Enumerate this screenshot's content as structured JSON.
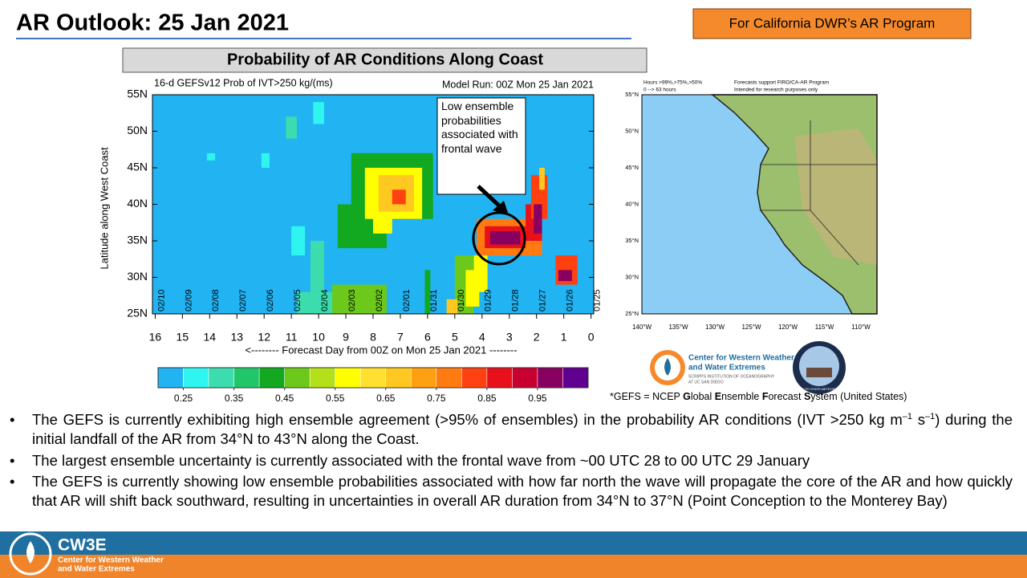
{
  "header": {
    "title": "AR Outlook: 25 Jan 2021",
    "tag": "For California DWR’s AR Program"
  },
  "panel_title": "Probability of AR Conditions Along Coast",
  "chart_data": {
    "type": "heatmap",
    "title": "16-d GEFSv12 Prob of IVT>250 kg/(ms)",
    "subtitle": "Model Run: 00Z Mon 25 Jan 2021",
    "x_label": "<-------- Forecast Day from 00Z on Mon 25 Jan 2021 --------",
    "y_label": "Latitude along West Coast",
    "annotation": "Low ensemble probabilities associated with frontal wave",
    "xlim": [
      16.1,
      -0.1
    ],
    "xticks": [
      16,
      15,
      14,
      13,
      12,
      11,
      10,
      9,
      8,
      7,
      6,
      5,
      4,
      3,
      2,
      1,
      0
    ],
    "x_dates": [
      "02/10",
      "02/09",
      "02/08",
      "02/07",
      "02/06",
      "02/05",
      "02/04",
      "02/03",
      "02/02",
      "02/01",
      "01/31",
      "01/30",
      "01/29",
      "01/28",
      "01/27",
      "01/26",
      "01/25"
    ],
    "ylim": [
      25,
      55
    ],
    "yticks": [
      {
        "value": 25,
        "label": "25N"
      },
      {
        "value": 30,
        "label": "30N"
      },
      {
        "value": 35,
        "label": "35N"
      },
      {
        "value": 40,
        "label": "40N"
      },
      {
        "value": 45,
        "label": "45N"
      },
      {
        "value": 50,
        "label": "50N"
      },
      {
        "value": 55,
        "label": "55N"
      }
    ],
    "patches": [
      {
        "days": [
          8.8,
          5.8
        ],
        "lats": [
          38,
          47
        ],
        "value": 0.4
      },
      {
        "days": [
          9.3,
          7.5
        ],
        "lats": [
          34,
          40
        ],
        "value": 0.4
      },
      {
        "days": [
          8.3,
          6.2
        ],
        "lats": [
          38,
          45
        ],
        "value": 0.55
      },
      {
        "days": [
          8.0,
          7.3
        ],
        "lats": [
          36,
          39
        ],
        "value": 0.6
      },
      {
        "days": [
          7.8,
          6.5
        ],
        "lats": [
          39,
          44
        ],
        "value": 0.7
      },
      {
        "days": [
          7.3,
          6.8
        ],
        "lats": [
          40,
          42
        ],
        "value": 0.8
      },
      {
        "days": [
          10.8,
          9.5
        ],
        "lats": [
          25,
          28
        ],
        "value": 0.35
      },
      {
        "days": [
          9.5,
          7.5
        ],
        "lats": [
          25,
          29
        ],
        "value": 0.45
      },
      {
        "days": [
          8.5,
          7.5
        ],
        "lats": [
          25,
          27
        ],
        "value": 0.5
      },
      {
        "days": [
          10.3,
          9.8
        ],
        "lats": [
          28,
          35
        ],
        "value": 0.35
      },
      {
        "days": [
          11.0,
          10.5
        ],
        "lats": [
          33,
          37
        ],
        "value": 0.3
      },
      {
        "days": [
          11.2,
          10.8
        ],
        "lats": [
          49,
          52
        ],
        "value": 0.35
      },
      {
        "days": [
          10.2,
          9.8
        ],
        "lats": [
          51,
          54
        ],
        "value": 0.3
      },
      {
        "days": [
          14.1,
          13.8
        ],
        "lats": [
          46,
          47
        ],
        "value": 0.3
      },
      {
        "days": [
          12.1,
          11.8
        ],
        "lats": [
          45,
          47
        ],
        "value": 0.3
      },
      {
        "days": [
          6.1,
          5.9
        ],
        "lats": [
          25,
          31
        ],
        "value": 0.4
      },
      {
        "days": [
          5.0,
          4.3
        ],
        "lats": [
          25,
          33
        ],
        "value": 0.45
      },
      {
        "days": [
          4.6,
          4.1
        ],
        "lats": [
          26,
          31
        ],
        "value": 0.6
      },
      {
        "days": [
          5.3,
          4.9
        ],
        "lats": [
          25,
          27
        ],
        "value": 0.7
      },
      {
        "days": [
          4.3,
          3.8
        ],
        "lats": [
          28,
          33
        ],
        "value": 0.55
      },
      {
        "days": [
          4.2,
          1.8
        ],
        "lats": [
          33,
          38
        ],
        "value": 0.75
      },
      {
        "days": [
          3.9,
          2.4
        ],
        "lats": [
          34,
          37
        ],
        "value": 0.9
      },
      {
        "days": [
          3.7,
          2.6
        ],
        "lats": [
          34.5,
          36.3
        ],
        "value": 0.98
      },
      {
        "days": [
          2.4,
          1.8
        ],
        "lats": [
          35,
          40
        ],
        "value": 0.9
      },
      {
        "days": [
          2.2,
          1.6
        ],
        "lats": [
          38,
          44
        ],
        "value": 0.8
      },
      {
        "days": [
          2.1,
          1.8
        ],
        "lats": [
          36,
          40
        ],
        "value": 0.98
      },
      {
        "days": [
          1.9,
          1.7
        ],
        "lats": [
          42,
          45
        ],
        "value": 0.7
      },
      {
        "days": [
          1.3,
          0.5
        ],
        "lats": [
          29,
          33
        ],
        "value": 0.8
      },
      {
        "days": [
          1.2,
          0.7
        ],
        "lats": [
          29.5,
          31
        ],
        "value": 0.95
      }
    ],
    "colorbar": {
      "lim": [
        0.2,
        1.05
      ],
      "colors": [
        "#21b3f2",
        "#2ef5f0",
        "#3cdcae",
        "#22c66a",
        "#12a820",
        "#6cc81a",
        "#b4e01a",
        "#ffff00",
        "#ffe030",
        "#ffc820",
        "#ffa010",
        "#ff7a10",
        "#ff4010",
        "#e8101a",
        "#c80030",
        "#880060",
        "#600090"
      ],
      "ticks": [
        0.25,
        0.35,
        0.45,
        0.55,
        0.65,
        0.75,
        0.85,
        0.95
      ]
    }
  },
  "map": {
    "header_left": [
      "Hours >99%,>75%,>50%",
      "0 --> 63 hours"
    ],
    "header_right": [
      "Forecasts support FIRO/CA-AR Program",
      "Intended for research purposes only"
    ],
    "lat_labels": [
      "55°N",
      "50°N",
      "45°N",
      "40°N",
      "35°N",
      "30°N",
      "25°N"
    ],
    "lon_labels": [
      "140°W",
      "135°W",
      "130°W",
      "125°W",
      "120°W",
      "115°W",
      "110°W"
    ]
  },
  "logos": {
    "cw3e": [
      "Center for Western Weather",
      "and Water Extremes",
      "SCRIPPS INSTITUTION OF OCEANOGRAPHY",
      "AT UC SAN DIEGO"
    ],
    "psu": "PLYMOUTH STATE METEOROLOGY"
  },
  "footnote": [
    "*GEFS = NCEP ",
    "G",
    "lobal ",
    "E",
    "nsemble ",
    "F",
    "orecast ",
    "S",
    "ystem (United States)"
  ],
  "bullets": [
    [
      "The GEFS is currently exhibiting high ensemble agreement (>95% of ensembles) in the probability AR conditions (IVT >250 kg m",
      "–1",
      " s",
      "–1",
      ") during the initial landfall of the AR from 34°N to 43°N along the Coast."
    ],
    "The largest ensemble uncertainty is currently associated with the frontal wave from ~00 UTC 28 to 00 UTC 29 January",
    "The GEFS is currently showing low ensemble probabilities associated with how far north the wave will propagate the core of the AR and how quickly that AR will shift back southward, resulting in uncertainties in overall AR duration from 34°N to 37°N (Point Conception to the Monterey Bay)"
  ],
  "footer": {
    "brand": "CW3E",
    "lines": [
      "Center for Western Weather",
      "and Water Extremes"
    ]
  }
}
